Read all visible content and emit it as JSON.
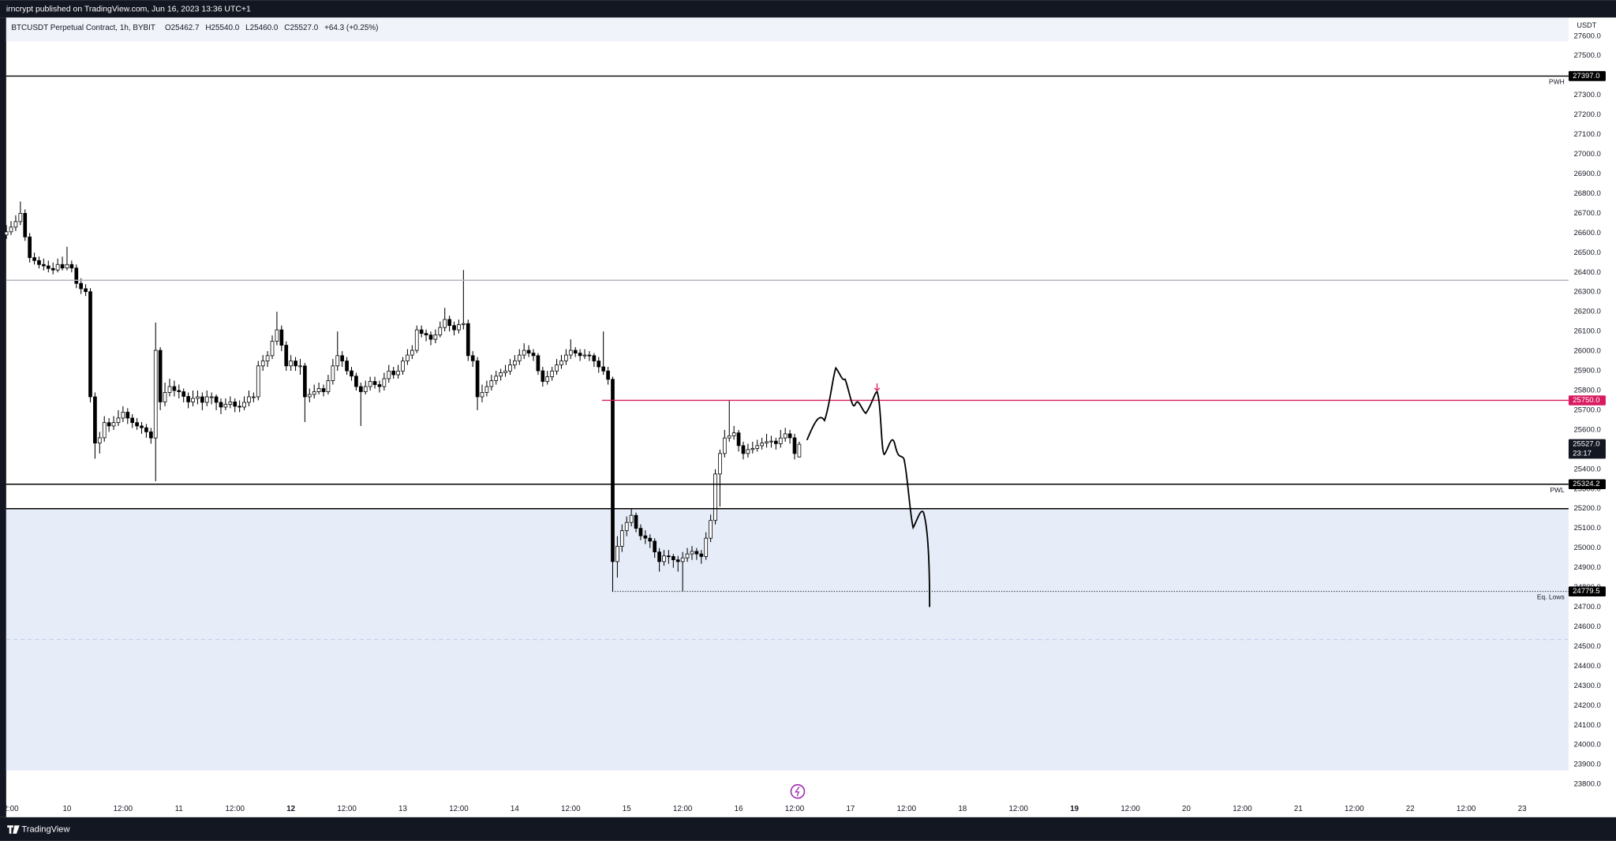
{
  "page": {
    "publisher": "irncrypt published on TradingView.com, Jun 16, 2023 13:36 UTC+1",
    "brand": "TradingView"
  },
  "chart_data": {
    "type": "candlestick",
    "title": "BTCUSDT Perpetual Contract, 1h, BYBIT",
    "ohlc_labels": [
      "O25462.7",
      "H25540.0",
      "L25460.0",
      "C25527.0",
      "+64.3 (+0.25%)"
    ],
    "currency": "USDT",
    "up_color": "#ffffff",
    "down_color": "#000000",
    "outline_color": "#000000",
    "xlim": [
      0,
      335
    ],
    "xticks": [
      {
        "value": 1,
        "label": "2:00"
      },
      {
        "value": 13,
        "label": "10"
      },
      {
        "value": 25,
        "label": "12:00"
      },
      {
        "value": 37,
        "label": "11"
      },
      {
        "value": 49,
        "label": "12:00"
      },
      {
        "value": 61,
        "label": "12",
        "bold": true
      },
      {
        "value": 73,
        "label": "12:00"
      },
      {
        "value": 85,
        "label": "13"
      },
      {
        "value": 97,
        "label": "12:00"
      },
      {
        "value": 109,
        "label": "14"
      },
      {
        "value": 121,
        "label": "12:00"
      },
      {
        "value": 133,
        "label": "15"
      },
      {
        "value": 145,
        "label": "12:00"
      },
      {
        "value": 157,
        "label": "16"
      },
      {
        "value": 169,
        "label": "12:00"
      },
      {
        "value": 181,
        "label": "17"
      },
      {
        "value": 193,
        "label": "12:00"
      },
      {
        "value": 205,
        "label": "18"
      },
      {
        "value": 217,
        "label": "12:00"
      },
      {
        "value": 229,
        "label": "19",
        "bold": true
      },
      {
        "value": 241,
        "label": "12:00"
      },
      {
        "value": 253,
        "label": "20"
      },
      {
        "value": 265,
        "label": "12:00"
      },
      {
        "value": 277,
        "label": "21"
      },
      {
        "value": 289,
        "label": "12:00"
      },
      {
        "value": 301,
        "label": "22"
      },
      {
        "value": 313,
        "label": "12:00"
      },
      {
        "value": 325,
        "label": "23"
      }
    ],
    "ylim": [
      23727,
      27694
    ],
    "yticks": [
      {
        "value": 27600,
        "label": "27600.0"
      },
      {
        "value": 27500,
        "label": "27500.0"
      },
      {
        "value": 27400,
        "label": "27400.0"
      },
      {
        "value": 27300,
        "label": "27300.0"
      },
      {
        "value": 27200,
        "label": "27200.0"
      },
      {
        "value": 27100,
        "label": "27100.0"
      },
      {
        "value": 27000,
        "label": "27000.0"
      },
      {
        "value": 26900,
        "label": "26900.0"
      },
      {
        "value": 26800,
        "label": "26800.0"
      },
      {
        "value": 26700,
        "label": "26700.0"
      },
      {
        "value": 26600,
        "label": "26600.0"
      },
      {
        "value": 26500,
        "label": "26500.0"
      },
      {
        "value": 26400,
        "label": "26400.0"
      },
      {
        "value": 26300,
        "label": "26300.0"
      },
      {
        "value": 26200,
        "label": "26200.0"
      },
      {
        "value": 26100,
        "label": "26100.0"
      },
      {
        "value": 26000,
        "label": "26000.0"
      },
      {
        "value": 25900,
        "label": "25900.0"
      },
      {
        "value": 25800,
        "label": "25800.0"
      },
      {
        "value": 25700,
        "label": "25700.0"
      },
      {
        "value": 25600,
        "label": "25600.0"
      },
      {
        "value": 25500,
        "label": "25500.0"
      },
      {
        "value": 25400,
        "label": "25400.0"
      },
      {
        "value": 25300,
        "label": "25300.0"
      },
      {
        "value": 25200,
        "label": "25200.0"
      },
      {
        "value": 25100,
        "label": "25100.0"
      },
      {
        "value": 25000,
        "label": "25000.0"
      },
      {
        "value": 24900,
        "label": "24900.0"
      },
      {
        "value": 24800,
        "label": "24800.0"
      },
      {
        "value": 24700,
        "label": "24700.0"
      },
      {
        "value": 24600,
        "label": "24600.0"
      },
      {
        "value": 24500,
        "label": "24500.0"
      },
      {
        "value": 24400,
        "label": "24400.0"
      },
      {
        "value": 24300,
        "label": "24300.0"
      },
      {
        "value": 24200,
        "label": "24200.0"
      },
      {
        "value": 24100,
        "label": "24100.0"
      },
      {
        "value": 24000,
        "label": "24000.0"
      },
      {
        "value": 23900,
        "label": "23900.0"
      },
      {
        "value": 23800,
        "label": "23800.0"
      }
    ],
    "zone": {
      "top": 25200,
      "bottom": 23870,
      "color": "#e6ecf8"
    },
    "levels": [
      {
        "value": 27397.0,
        "label": "PWH",
        "price_label": "27397.0",
        "color": "#000000"
      },
      {
        "value": 26360,
        "color": "#b2b5be"
      },
      {
        "value": 25750.0,
        "price_label": "25750.0",
        "color": "#d81b60",
        "x_start": 127.7
      },
      {
        "value": 25324.2,
        "label": "PWL",
        "price_label": "25324.2",
        "color": "#000000"
      },
      {
        "value": 25200,
        "color": "#000000"
      },
      {
        "value": 24779.5,
        "label": "Eq. Lows",
        "price_label": "24779.5",
        "color": "#000000",
        "style": "dotted",
        "x_start": 129.9
      }
    ],
    "current": {
      "value": 25527.0,
      "price_label": "25527.0",
      "countdown": "23:17"
    },
    "candles": [
      [
        26590,
        26640,
        26570,
        26606
      ],
      [
        26606,
        26660,
        26590,
        26630
      ],
      [
        26630,
        26690,
        26610,
        26658
      ],
      [
        26658,
        26760,
        26640,
        26700
      ],
      [
        26700,
        26720,
        26560,
        26580
      ],
      [
        26580,
        26600,
        26450,
        26475
      ],
      [
        26475,
        26500,
        26440,
        26460
      ],
      [
        26460,
        26480,
        26420,
        26440
      ],
      [
        26440,
        26470,
        26410,
        26433
      ],
      [
        26433,
        26460,
        26400,
        26420
      ],
      [
        26420,
        26450,
        26390,
        26412
      ],
      [
        26412,
        26470,
        26400,
        26440
      ],
      [
        26440,
        26480,
        26410,
        26422
      ],
      [
        26422,
        26530,
        26410,
        26440
      ],
      [
        26440,
        26460,
        26400,
        26422
      ],
      [
        26422,
        26440,
        26320,
        26344
      ],
      [
        26344,
        26370,
        26290,
        26317
      ],
      [
        26317,
        26340,
        26280,
        26302
      ],
      [
        26302,
        26320,
        25740,
        25768
      ],
      [
        25768,
        25790,
        25454,
        25533
      ],
      [
        25533,
        25590,
        25480,
        25560
      ],
      [
        25560,
        25670,
        25540,
        25637
      ],
      [
        25637,
        25660,
        25590,
        25620
      ],
      [
        25620,
        25670,
        25600,
        25637
      ],
      [
        25637,
        25700,
        25620,
        25660
      ],
      [
        25660,
        25720,
        25640,
        25690
      ],
      [
        25690,
        25710,
        25630,
        25660
      ],
      [
        25660,
        25680,
        25610,
        25637
      ],
      [
        25637,
        25660,
        25600,
        25620
      ],
      [
        25620,
        25640,
        25580,
        25611
      ],
      [
        25611,
        25630,
        25560,
        25590
      ],
      [
        25590,
        25610,
        25530,
        25559
      ],
      [
        25559,
        26145,
        25339,
        26004
      ],
      [
        26004,
        26020,
        25700,
        25742
      ],
      [
        25742,
        25840,
        25720,
        25790
      ],
      [
        25790,
        25860,
        25770,
        25820
      ],
      [
        25820,
        25850,
        25770,
        25800
      ],
      [
        25800,
        25830,
        25760,
        25794
      ],
      [
        25794,
        25810,
        25740,
        25770
      ],
      [
        25770,
        25790,
        25710,
        25742
      ],
      [
        25742,
        25800,
        25720,
        25760
      ],
      [
        25760,
        25800,
        25730,
        25768
      ],
      [
        25768,
        25790,
        25700,
        25740
      ],
      [
        25740,
        25800,
        25720,
        25768
      ],
      [
        25768,
        25790,
        25730,
        25768
      ],
      [
        25768,
        25780,
        25700,
        25740
      ],
      [
        25740,
        25760,
        25680,
        25716
      ],
      [
        25716,
        25760,
        25700,
        25730
      ],
      [
        25730,
        25770,
        25710,
        25742
      ],
      [
        25742,
        25760,
        25690,
        25720
      ],
      [
        25720,
        25750,
        25690,
        25716
      ],
      [
        25716,
        25770,
        25700,
        25740
      ],
      [
        25740,
        25800,
        25720,
        25768
      ],
      [
        25768,
        25790,
        25740,
        25768
      ],
      [
        25768,
        25950,
        25750,
        25925
      ],
      [
        25925,
        25980,
        25900,
        25950
      ],
      [
        25950,
        26000,
        25920,
        25977
      ],
      [
        25977,
        26080,
        25960,
        26050
      ],
      [
        26050,
        26200,
        26030,
        26108
      ],
      [
        26108,
        26130,
        26000,
        26030
      ],
      [
        26030,
        26050,
        25900,
        25925
      ],
      [
        25925,
        25980,
        25900,
        25950
      ],
      [
        25950,
        25970,
        25900,
        25925
      ],
      [
        25925,
        25960,
        25880,
        25925
      ],
      [
        25925,
        25940,
        25640,
        25768
      ],
      [
        25768,
        25810,
        25740,
        25780
      ],
      [
        25780,
        25830,
        25760,
        25794
      ],
      [
        25794,
        25840,
        25780,
        25810
      ],
      [
        25810,
        25830,
        25770,
        25794
      ],
      [
        25794,
        25880,
        25780,
        25850
      ],
      [
        25850,
        25960,
        25830,
        25925
      ],
      [
        25925,
        26100,
        25900,
        25977
      ],
      [
        25977,
        26000,
        25920,
        25950
      ],
      [
        25950,
        25970,
        25880,
        25900
      ],
      [
        25900,
        25920,
        25850,
        25873
      ],
      [
        25873,
        25890,
        25800,
        25820
      ],
      [
        25820,
        25840,
        25620,
        25794
      ],
      [
        25794,
        25850,
        25780,
        25820
      ],
      [
        25820,
        25870,
        25800,
        25846
      ],
      [
        25846,
        25870,
        25810,
        25830
      ],
      [
        25830,
        25850,
        25790,
        25820
      ],
      [
        25820,
        25890,
        25800,
        25860
      ],
      [
        25860,
        25930,
        25840,
        25899
      ],
      [
        25899,
        25920,
        25860,
        25880
      ],
      [
        25880,
        25930,
        25860,
        25899
      ],
      [
        25899,
        25970,
        25880,
        25950
      ],
      [
        25950,
        26010,
        25930,
        25980
      ],
      [
        25980,
        26030,
        25960,
        26004
      ],
      [
        26004,
        26130,
        25990,
        26108
      ],
      [
        26108,
        26130,
        26070,
        26090
      ],
      [
        26090,
        26110,
        26050,
        26082
      ],
      [
        26082,
        26100,
        26030,
        26060
      ],
      [
        26060,
        26110,
        26040,
        26082
      ],
      [
        26082,
        26150,
        26070,
        26120
      ],
      [
        26120,
        26220,
        26100,
        26161
      ],
      [
        26161,
        26180,
        26100,
        26130
      ],
      [
        26130,
        26150,
        26080,
        26108
      ],
      [
        26108,
        26160,
        26090,
        26135
      ],
      [
        26135,
        26412,
        26110,
        26140
      ],
      [
        26140,
        26160,
        25950,
        25977
      ],
      [
        25977,
        26000,
        25920,
        25951
      ],
      [
        25951,
        25970,
        25700,
        25768
      ],
      [
        25768,
        25830,
        25740,
        25790
      ],
      [
        25790,
        25850,
        25770,
        25820
      ],
      [
        25820,
        25880,
        25800,
        25850
      ],
      [
        25850,
        25900,
        25830,
        25873
      ],
      [
        25873,
        25910,
        25850,
        25890
      ],
      [
        25890,
        25930,
        25870,
        25899
      ],
      [
        25899,
        25960,
        25880,
        25930
      ],
      [
        25930,
        25980,
        25910,
        25951
      ],
      [
        25951,
        26010,
        25930,
        25980
      ],
      [
        25980,
        26040,
        25960,
        26004
      ],
      [
        26004,
        26030,
        25970,
        25990
      ],
      [
        25990,
        26010,
        25950,
        25977
      ],
      [
        25977,
        25990,
        25880,
        25900
      ],
      [
        25900,
        25920,
        25820,
        25846
      ],
      [
        25846,
        25900,
        25830,
        25870
      ],
      [
        25870,
        25920,
        25850,
        25899
      ],
      [
        25899,
        25960,
        25880,
        25930
      ],
      [
        25930,
        25980,
        25910,
        25951
      ],
      [
        25951,
        26010,
        25930,
        25980
      ],
      [
        25980,
        26060,
        25960,
        26004
      ],
      [
        26004,
        26020,
        25970,
        25990
      ],
      [
        25990,
        26010,
        25950,
        25977
      ],
      [
        25977,
        26010,
        25960,
        25980
      ],
      [
        25980,
        26000,
        25950,
        25977
      ],
      [
        25977,
        25990,
        25920,
        25950
      ],
      [
        25950,
        25970,
        25890,
        25920
      ],
      [
        25920,
        26100,
        25880,
        25899
      ],
      [
        25899,
        25920,
        25830,
        25857
      ],
      [
        25857,
        25870,
        24780,
        24931
      ],
      [
        24931,
        25060,
        24850,
        25009
      ],
      [
        25009,
        25120,
        24980,
        25088
      ],
      [
        25088,
        25160,
        25060,
        25130
      ],
      [
        25130,
        25200,
        25110,
        25166
      ],
      [
        25166,
        25180,
        25080,
        25100
      ],
      [
        25100,
        25120,
        25040,
        25062
      ],
      [
        25062,
        25090,
        25020,
        25050
      ],
      [
        25050,
        25070,
        25000,
        25035
      ],
      [
        25035,
        25050,
        24950,
        24980
      ],
      [
        24980,
        25000,
        24880,
        24931
      ],
      [
        24931,
        24990,
        24910,
        24960
      ],
      [
        24960,
        24990,
        24920,
        24957
      ],
      [
        24957,
        24970,
        24900,
        24940
      ],
      [
        24940,
        24960,
        24880,
        24931
      ],
      [
        24931,
        24980,
        24780,
        24950
      ],
      [
        24950,
        25000,
        24930,
        24970
      ],
      [
        24970,
        25010,
        24940,
        24983
      ],
      [
        24983,
        25000,
        24940,
        24970
      ],
      [
        24970,
        24990,
        24920,
        24957
      ],
      [
        24957,
        25080,
        24940,
        25050
      ],
      [
        25050,
        25170,
        25030,
        25140
      ],
      [
        25140,
        25400,
        25120,
        25376
      ],
      [
        25376,
        25500,
        25210,
        25480
      ],
      [
        25480,
        25600,
        25460,
        25559
      ],
      [
        25559,
        25750,
        25540,
        25570
      ],
      [
        25570,
        25620,
        25550,
        25585
      ],
      [
        25585,
        25600,
        25490,
        25520
      ],
      [
        25520,
        25540,
        25450,
        25480
      ],
      [
        25480,
        25530,
        25460,
        25500
      ],
      [
        25500,
        25540,
        25480,
        25506
      ],
      [
        25506,
        25550,
        25490,
        25520
      ],
      [
        25520,
        25560,
        25500,
        25533
      ],
      [
        25533,
        25580,
        25510,
        25540
      ],
      [
        25540,
        25570,
        25510,
        25543
      ],
      [
        25543,
        25560,
        25500,
        25530
      ],
      [
        25530,
        25600,
        25510,
        25559
      ],
      [
        25559,
        25610,
        25540,
        25580
      ],
      [
        25580,
        25600,
        25530,
        25560
      ],
      [
        25560,
        25580,
        25450,
        25480
      ],
      [
        25462.7,
        25540,
        25460,
        25527
      ]
    ]
  }
}
